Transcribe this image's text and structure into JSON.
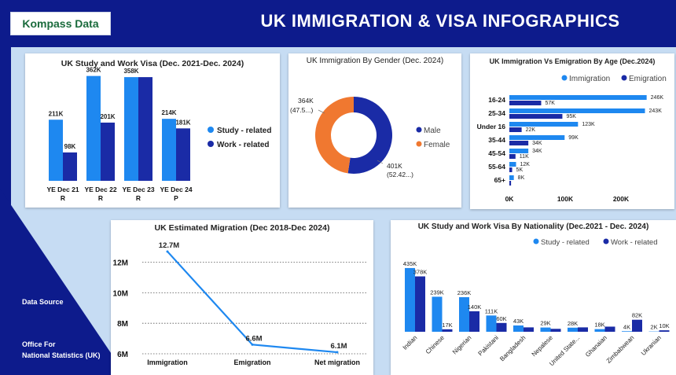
{
  "header": {
    "brand": "Kompass Data",
    "title": "UK IMMIGRATION & VISA INFOGRAPHICS"
  },
  "sidebar": {
    "data_source_label": "Data Source",
    "source_line1": "Office For",
    "source_line2": "National Statistics (UK)"
  },
  "colors": {
    "navy": "#0d1b8c",
    "light_blue": "#1e88f0",
    "dark_blue": "#1a2ba6",
    "orange": "#f07830",
    "bg": "#c6dcf3"
  },
  "chart_data": [
    {
      "id": "study_work_visa",
      "type": "bar",
      "title": "UK Study and Work Visa (Dec. 2021-Dec. 2024)",
      "categories": [
        [
          "YE Dec 21",
          "R"
        ],
        [
          "YE Dec 22",
          "R"
        ],
        [
          "YE Dec 23",
          "R"
        ],
        [
          "YE Dec 24",
          "P"
        ]
      ],
      "series": [
        {
          "name": "Study - related",
          "color": "#1e88f0",
          "values": [
            211,
            362,
            358,
            214
          ],
          "labels": [
            "211K",
            "362K",
            "358K",
            "214K"
          ]
        },
        {
          "name": "Work - related",
          "color": "#1a2ba6",
          "values": [
            98,
            201,
            358,
            181
          ],
          "labels": [
            "98K",
            "201K",
            "",
            "181K"
          ]
        }
      ],
      "legend": "right"
    },
    {
      "id": "gender",
      "type": "pie",
      "title": "UK Immigration By Gender (Dec. 2024)",
      "slices": [
        {
          "name": "Male",
          "value": 401,
          "label": "401K",
          "pct": "(52.42...)",
          "color": "#1a2ba6"
        },
        {
          "name": "Female",
          "value": 364,
          "label": "364K",
          "pct": "(47.5...)",
          "color": "#f07830"
        }
      ],
      "legend": "right"
    },
    {
      "id": "age",
      "type": "bar",
      "title": "UK Immigration Vs Emigration By Age (Dec.2024)",
      "orientation": "horizontal",
      "categories": [
        "16-24",
        "25-34",
        "Under 16",
        "35-44",
        "45-54",
        "55-64",
        "65+"
      ],
      "series": [
        {
          "name": "Immigration",
          "color": "#1e88f0",
          "values": [
            246,
            243,
            123,
            99,
            34,
            12,
            8
          ],
          "labels": [
            "246K",
            "243K",
            "123K",
            "99K",
            "34K",
            "12K",
            "8K"
          ]
        },
        {
          "name": "Emigration",
          "color": "#1a2ba6",
          "values": [
            57,
            95,
            22,
            34,
            11,
            5,
            3
          ],
          "labels": [
            "57K",
            "95K",
            "22K",
            "34K",
            "11K",
            "5K",
            ""
          ]
        }
      ],
      "xlim": [
        0,
        265
      ],
      "xticks": [
        {
          "v": 0,
          "label": "0K"
        },
        {
          "v": 100,
          "label": "100K"
        },
        {
          "v": 200,
          "label": "200K"
        }
      ],
      "legend": "top"
    },
    {
      "id": "migration",
      "type": "line",
      "title": "UK Estimated Migration (Dec 2018-Dec 2024)",
      "categories": [
        "Immigration",
        "Emigration",
        "Net migration"
      ],
      "values": [
        12.7,
        6.6,
        6.1
      ],
      "labels": [
        "12.7M",
        "6.6M",
        "6.1M"
      ],
      "ylim": [
        6,
        12.8
      ],
      "yticks": [
        {
          "v": 6,
          "label": "6M"
        },
        {
          "v": 8,
          "label": "8M"
        },
        {
          "v": 10,
          "label": "10M"
        },
        {
          "v": 12,
          "label": "12M"
        }
      ],
      "grid": true
    },
    {
      "id": "nationality",
      "type": "bar",
      "title": "UK Study and Work Visa By Nationality (Dec.2021 - Dec. 2024)",
      "categories": [
        "Indian",
        "Chinese",
        "Nigerian",
        "Pakistani",
        "Bangladesh",
        "Nepalese",
        "United State...",
        "Ghanaian",
        "Zimbabwean",
        "Ukranian"
      ],
      "series": [
        {
          "name": "Study - related",
          "color": "#1e88f0",
          "values": [
            435,
            239,
            236,
            111,
            43,
            29,
            28,
            18,
            4,
            2
          ],
          "labels": [
            "435K",
            "239K",
            "236K",
            "111K",
            "43K",
            "29K",
            "28K",
            "18K",
            "4K",
            "2K"
          ]
        },
        {
          "name": "Work - related",
          "color": "#1a2ba6",
          "values": [
            378,
            17,
            140,
            60,
            30,
            20,
            30,
            35,
            82,
            10
          ],
          "labels": [
            "378K",
            "17K",
            "140K",
            "60K",
            "",
            "",
            "",
            "",
            "82K",
            "10K"
          ]
        }
      ],
      "legend": "top-right"
    }
  ]
}
